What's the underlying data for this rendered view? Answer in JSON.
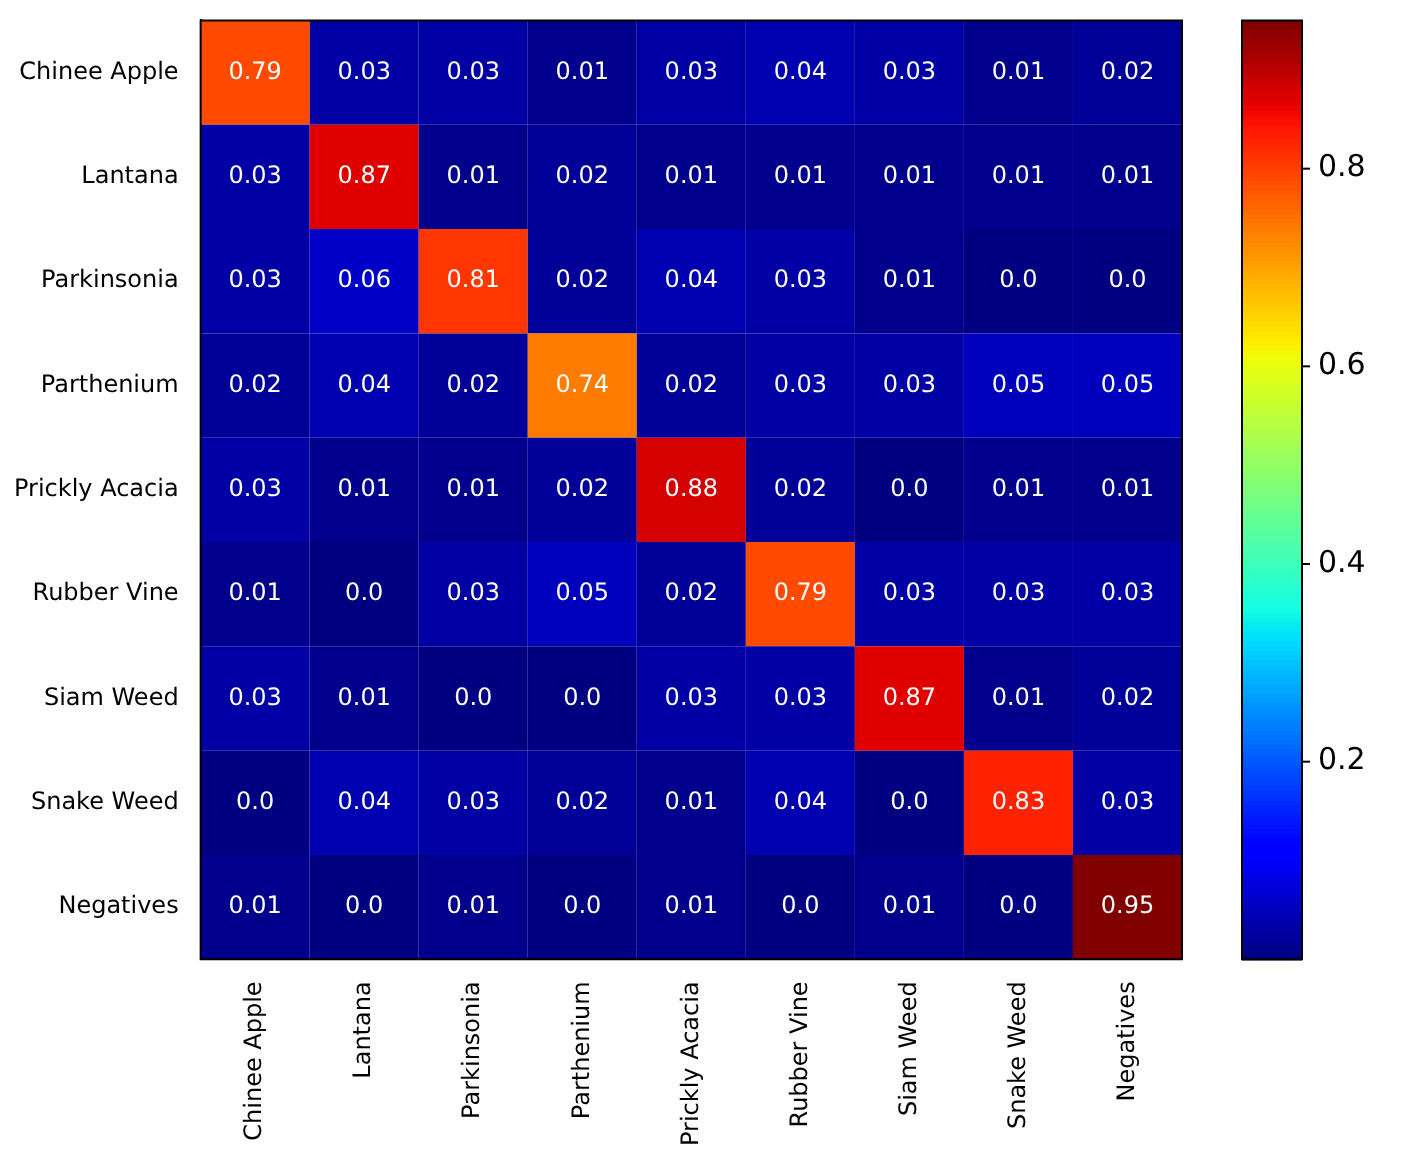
{
  "chart_data": {
    "type": "heatmap",
    "categories": [
      "Chinee Apple",
      "Lantana",
      "Parkinsonia",
      "Parthenium",
      "Prickly Acacia",
      "Rubber Vine",
      "Siam Weed",
      "Snake Weed",
      "Negatives"
    ],
    "y_categories": [
      "Chinee Apple",
      "Lantana",
      "Parkinsonia",
      "Parthenium",
      "Prickly Acacia",
      "Rubber Vine",
      "Siam Weed",
      "Snake Weed",
      "Negatives"
    ],
    "cells": [
      [
        0.79,
        0.03,
        0.03,
        0.01,
        0.03,
        0.04,
        0.03,
        0.01,
        0.02
      ],
      [
        0.03,
        0.87,
        0.01,
        0.02,
        0.01,
        0.01,
        0.01,
        0.01,
        0.01
      ],
      [
        0.03,
        0.06,
        0.81,
        0.02,
        0.04,
        0.03,
        0.01,
        0.0,
        0.0
      ],
      [
        0.02,
        0.04,
        0.02,
        0.74,
        0.02,
        0.03,
        0.03,
        0.05,
        0.05
      ],
      [
        0.03,
        0.01,
        0.01,
        0.02,
        0.88,
        0.02,
        0.0,
        0.01,
        0.01
      ],
      [
        0.01,
        0.0,
        0.03,
        0.05,
        0.02,
        0.79,
        0.03,
        0.03,
        0.03
      ],
      [
        0.03,
        0.01,
        0.0,
        0.0,
        0.03,
        0.03,
        0.87,
        0.01,
        0.02
      ],
      [
        0.0,
        0.04,
        0.03,
        0.02,
        0.01,
        0.04,
        0.0,
        0.83,
        0.03
      ],
      [
        0.01,
        0.0,
        0.01,
        0.0,
        0.01,
        0.0,
        0.01,
        0.0,
        0.95
      ]
    ],
    "cell_labels": [
      [
        "0.79",
        "0.03",
        "0.03",
        "0.01",
        "0.03",
        "0.04",
        "0.03",
        "0.01",
        "0.02"
      ],
      [
        "0.03",
        "0.87",
        "0.01",
        "0.02",
        "0.01",
        "0.01",
        "0.01",
        "0.01",
        "0.01"
      ],
      [
        "0.03",
        "0.06",
        "0.81",
        "0.02",
        "0.04",
        "0.03",
        "0.01",
        "0.0",
        "0.0"
      ],
      [
        "0.02",
        "0.04",
        "0.02",
        "0.74",
        "0.02",
        "0.03",
        "0.03",
        "0.05",
        "0.05"
      ],
      [
        "0.03",
        "0.01",
        "0.01",
        "0.02",
        "0.88",
        "0.02",
        "0.0",
        "0.01",
        "0.01"
      ],
      [
        "0.01",
        "0.0",
        "0.03",
        "0.05",
        "0.02",
        "0.79",
        "0.03",
        "0.03",
        "0.03"
      ],
      [
        "0.03",
        "0.01",
        "0.0",
        "0.0",
        "0.03",
        "0.03",
        "0.87",
        "0.01",
        "0.02"
      ],
      [
        "0.0",
        "0.04",
        "0.03",
        "0.02",
        "0.01",
        "0.04",
        "0.0",
        "0.83",
        "0.03"
      ],
      [
        "0.01",
        "0.0",
        "0.01",
        "0.0",
        "0.01",
        "0.0",
        "0.01",
        "0.0",
        "0.95"
      ]
    ],
    "clim": [
      0.0,
      0.95
    ],
    "cticks": [
      0.2,
      0.4,
      0.6,
      0.8
    ],
    "data_labels": true
  }
}
